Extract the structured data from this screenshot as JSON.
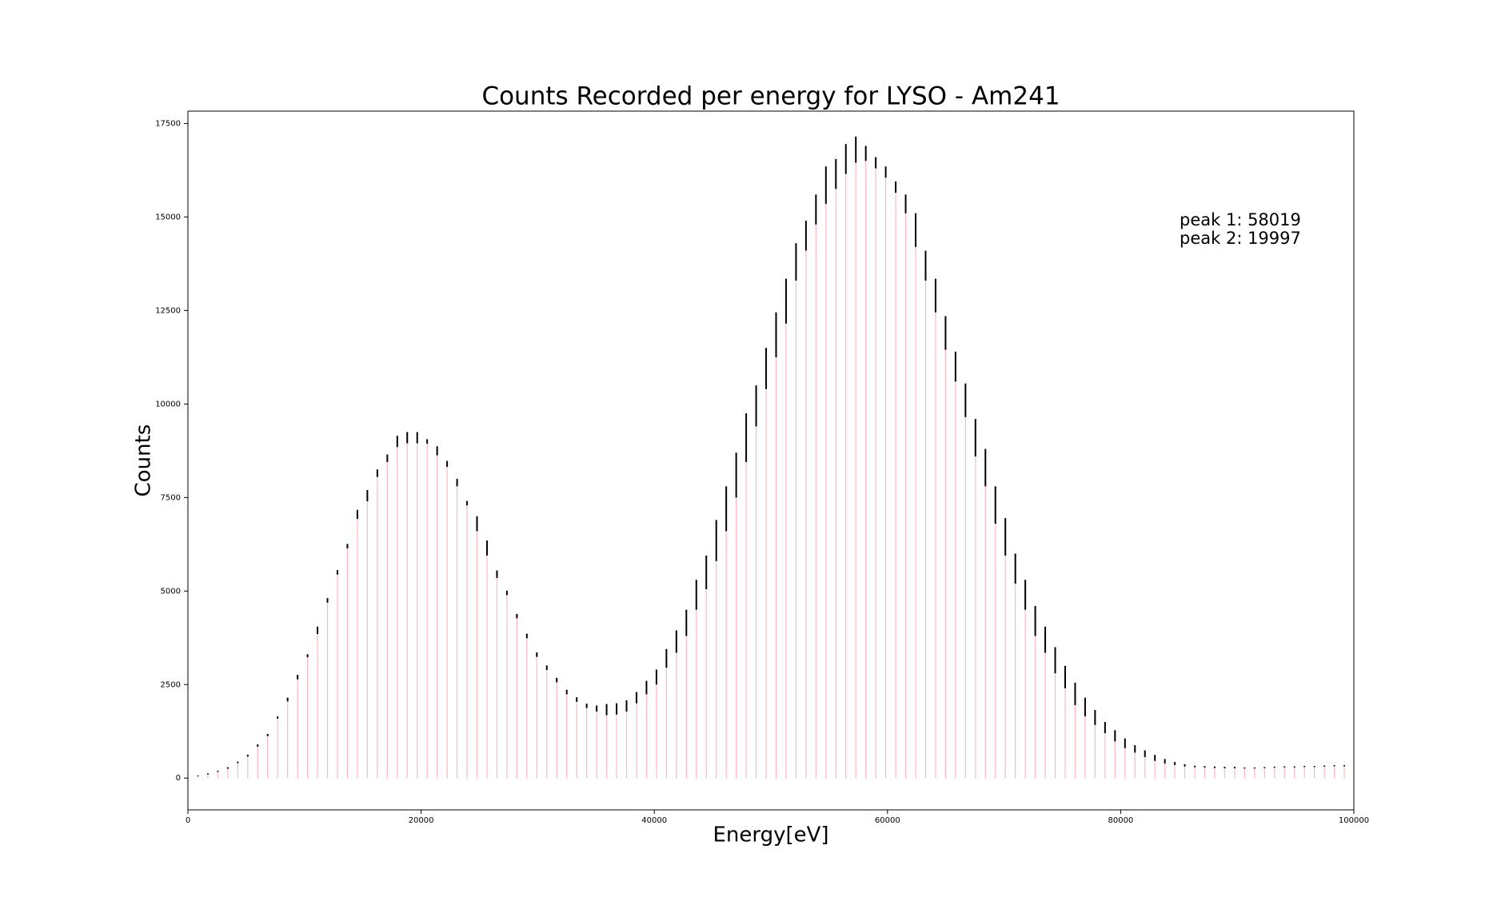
{
  "chart_data": {
    "type": "errorbar",
    "title": "Counts Recorded per energy for LYSO - Am241",
    "x_label": "Energy[eV]",
    "y_label": "Counts",
    "annotations": [
      "peak 1: 58019",
      "peak 2: 19997"
    ],
    "xlim": [
      0,
      100000
    ],
    "xticks": [
      0,
      20000,
      40000,
      60000,
      80000,
      100000
    ],
    "ylim": [
      -850,
      17830
    ],
    "yticks": [
      0,
      2500,
      5000,
      7500,
      10000,
      12500,
      15000,
      17500
    ],
    "bar_color": "#ffb6c1",
    "error_color": "#000000",
    "x": [
      855,
      1710,
      2565,
      3420,
      4275,
      5130,
      5985,
      6840,
      7695,
      8550,
      9405,
      10260,
      11115,
      11970,
      12825,
      13680,
      14535,
      15390,
      16245,
      17100,
      17955,
      18810,
      19665,
      20520,
      21375,
      22230,
      23085,
      23940,
      24795,
      25650,
      26505,
      27360,
      28215,
      29070,
      29925,
      30780,
      31635,
      32490,
      33345,
      34200,
      35055,
      35910,
      36765,
      37620,
      38475,
      39330,
      40185,
      41040,
      41895,
      42750,
      43605,
      44460,
      45315,
      46170,
      47025,
      47880,
      48735,
      49590,
      50445,
      51300,
      52155,
      53010,
      53865,
      54720,
      55575,
      56430,
      57285,
      58140,
      58995,
      59850,
      60705,
      61560,
      62415,
      63270,
      64125,
      64980,
      65835,
      66690,
      67545,
      68400,
      69255,
      70110,
      70965,
      71820,
      72675,
      73530,
      74385,
      75240,
      76095,
      76950,
      77805,
      78660,
      79515,
      80370,
      81225,
      82080,
      82935,
      83790,
      84645,
      85500,
      86355,
      87210,
      88065,
      88920,
      89775,
      90630,
      91485,
      92340,
      93195,
      94050,
      94905,
      95760,
      96615,
      97470,
      98325,
      99180
    ],
    "values": [
      60,
      110,
      180,
      270,
      420,
      600,
      870,
      1150,
      1620,
      2100,
      2700,
      3270,
      3950,
      4750,
      5500,
      6200,
      7050,
      7550,
      8150,
      8550,
      9000,
      9100,
      9100,
      9000,
      8750,
      8400,
      7900,
      7350,
      6800,
      6150,
      5450,
      4950,
      4330,
      3800,
      3300,
      2950,
      2620,
      2300,
      2100,
      1930,
      1860,
      1830,
      1850,
      1930,
      2150,
      2420,
      2700,
      3200,
      3650,
      4150,
      4900,
      5500,
      6350,
      7200,
      8100,
      9100,
      9950,
      10950,
      11850,
      12750,
      13800,
      14500,
      15200,
      15850,
      16150,
      16550,
      16800,
      16700,
      16450,
      16200,
      15800,
      15350,
      14650,
      13700,
      12900,
      11900,
      11000,
      10100,
      9100,
      8300,
      7300,
      6450,
      5600,
      4900,
      4200,
      3700,
      3150,
      2700,
      2250,
      1900,
      1620,
      1350,
      1130,
      930,
      780,
      650,
      540,
      450,
      390,
      340,
      310,
      300,
      290,
      280,
      280,
      270,
      270,
      280,
      290,
      300,
      300,
      310,
      310,
      320,
      330,
      330
    ],
    "errors": [
      10,
      15,
      15,
      20,
      20,
      25,
      30,
      30,
      30,
      50,
      60,
      40,
      100,
      60,
      60,
      60,
      120,
      150,
      100,
      100,
      150,
      150,
      150,
      60,
      120,
      80,
      100,
      60,
      200,
      200,
      100,
      60,
      60,
      60,
      60,
      60,
      60,
      60,
      60,
      60,
      80,
      150,
      150,
      150,
      150,
      180,
      200,
      250,
      300,
      350,
      400,
      450,
      550,
      600,
      600,
      650,
      550,
      550,
      600,
      600,
      500,
      400,
      400,
      500,
      400,
      400,
      350,
      200,
      150,
      150,
      150,
      250,
      450,
      400,
      450,
      450,
      400,
      450,
      500,
      500,
      500,
      500,
      400,
      400,
      400,
      350,
      350,
      300,
      300,
      250,
      200,
      150,
      150,
      130,
      100,
      90,
      80,
      60,
      40,
      30,
      20,
      20,
      20,
      20,
      20,
      15,
      15,
      15,
      15,
      15,
      15,
      15,
      15,
      15,
      15,
      15
    ]
  }
}
